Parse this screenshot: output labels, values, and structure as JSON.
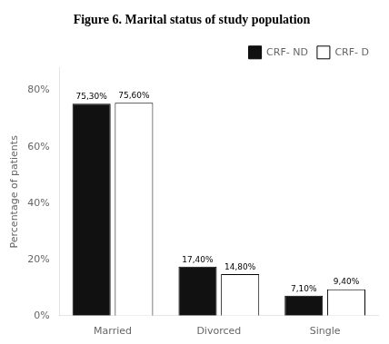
{
  "chart_data": {
    "type": "bar",
    "title": "Figure 6. Marital status of study population",
    "categories": [
      "Married",
      "Divorced",
      "Single"
    ],
    "series": [
      {
        "name": "CRF- ND",
        "color": "#111111",
        "values": [
          75.3,
          17.4,
          7.1
        ],
        "value_labels": [
          "75,30%",
          "17,40%",
          "7,10%"
        ]
      },
      {
        "name": "CRF- D",
        "color": "#ffffff",
        "values": [
          75.6,
          14.8,
          9.4
        ],
        "value_labels": [
          "75,60%",
          "14,80%",
          "9,40%"
        ]
      }
    ],
    "ylabel": "Percentage of patients",
    "ylim": [
      0,
      88
    ],
    "yticks": [
      {
        "value": 0,
        "label": "0%"
      },
      {
        "value": 20,
        "label": "20%"
      },
      {
        "value": 40,
        "label": "40%"
      },
      {
        "value": 60,
        "label": "60%"
      },
      {
        "value": 80,
        "label": "80%"
      }
    ],
    "grid": false,
    "legend": "upper right",
    "data_labels": true
  }
}
